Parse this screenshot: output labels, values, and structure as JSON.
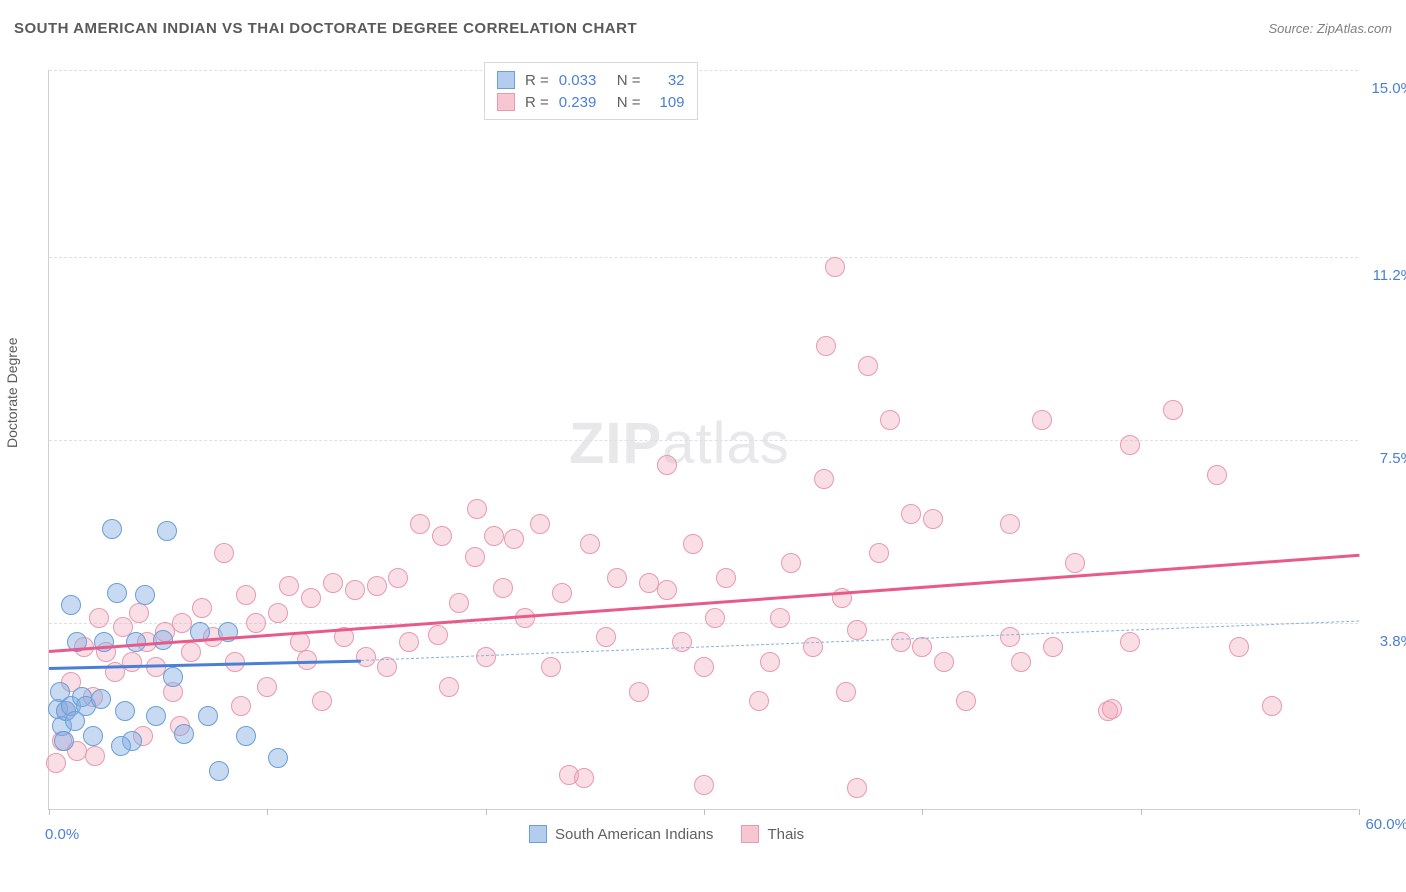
{
  "title": "SOUTH AMERICAN INDIAN VS THAI DOCTORATE DEGREE CORRELATION CHART",
  "source": "Source: ZipAtlas.com",
  "watermark_zip": "ZIP",
  "watermark_atlas": "atlas",
  "ylabel": "Doctorate Degree",
  "chart": {
    "type": "scatter",
    "xlim": [
      0,
      60
    ],
    "ylim": [
      0,
      15
    ],
    "x_min_label": "0.0%",
    "x_max_label": "60.0%",
    "y_ticks": [
      {
        "value": 3.8,
        "label": "3.8%"
      },
      {
        "value": 7.5,
        "label": "7.5%"
      },
      {
        "value": 11.2,
        "label": "11.2%"
      },
      {
        "value": 15.0,
        "label": "15.0%"
      }
    ],
    "x_tick_positions": [
      0,
      10,
      20,
      30,
      40,
      50,
      60
    ],
    "background_color": "#ffffff",
    "grid_color": "#e0e0e0",
    "axis_color": "#d0d0d0",
    "tick_label_color": "#4a7fd6",
    "marker_radius": 10,
    "series": {
      "blue": {
        "label": "South American Indians",
        "fill": "rgba(130,172,226,0.45)",
        "stroke": "#6a9fd8",
        "R": "0.033",
        "N": "32",
        "regression": {
          "x0": 0,
          "y0": 2.9,
          "x1": 14.3,
          "y1": 3.05,
          "solid_until_x": 14.3,
          "dash_to_x": 60,
          "dash_y1": 3.85,
          "line_color": "#4a7fd6",
          "line_width": 3,
          "dash_color": "#8ab0e0"
        },
        "points": [
          {
            "x": 0.4,
            "y": 2.05
          },
          {
            "x": 0.6,
            "y": 1.7
          },
          {
            "x": 0.8,
            "y": 2.0
          },
          {
            "x": 0.5,
            "y": 2.4
          },
          {
            "x": 0.7,
            "y": 1.4
          },
          {
            "x": 1.0,
            "y": 2.1
          },
          {
            "x": 1.2,
            "y": 1.8
          },
          {
            "x": 1.5,
            "y": 2.3
          },
          {
            "x": 1.0,
            "y": 4.15
          },
          {
            "x": 1.3,
            "y": 3.4
          },
          {
            "x": 1.7,
            "y": 2.1
          },
          {
            "x": 2.0,
            "y": 1.5
          },
          {
            "x": 2.4,
            "y": 2.25
          },
          {
            "x": 2.5,
            "y": 3.4
          },
          {
            "x": 2.9,
            "y": 5.7
          },
          {
            "x": 3.1,
            "y": 4.4
          },
          {
            "x": 3.5,
            "y": 2.0
          },
          {
            "x": 3.8,
            "y": 1.4
          },
          {
            "x": 4.0,
            "y": 3.4
          },
          {
            "x": 4.4,
            "y": 4.35
          },
          {
            "x": 4.9,
            "y": 1.9
          },
          {
            "x": 5.2,
            "y": 3.45
          },
          {
            "x": 5.4,
            "y": 5.65
          },
          {
            "x": 5.7,
            "y": 2.7
          },
          {
            "x": 6.2,
            "y": 1.55
          },
          {
            "x": 6.9,
            "y": 3.6
          },
          {
            "x": 7.3,
            "y": 1.9
          },
          {
            "x": 7.8,
            "y": 0.8
          },
          {
            "x": 8.2,
            "y": 3.6
          },
          {
            "x": 9.0,
            "y": 1.5
          },
          {
            "x": 10.5,
            "y": 1.05
          },
          {
            "x": 3.3,
            "y": 1.3
          }
        ]
      },
      "pink": {
        "label": "Thais",
        "fill": "rgba(240,160,180,0.35)",
        "stroke": "#e89ab0",
        "R": "0.239",
        "N": "109",
        "regression": {
          "x0": 0,
          "y0": 3.25,
          "x1": 60,
          "y1": 5.2,
          "line_color": "#e85a8a",
          "line_width": 3
        },
        "points": [
          {
            "x": 0.3,
            "y": 0.95
          },
          {
            "x": 0.6,
            "y": 1.4
          },
          {
            "x": 0.8,
            "y": 2.0
          },
          {
            "x": 1.0,
            "y": 2.6
          },
          {
            "x": 1.3,
            "y": 1.2
          },
          {
            "x": 1.6,
            "y": 3.3
          },
          {
            "x": 2.0,
            "y": 2.3
          },
          {
            "x": 2.3,
            "y": 3.9
          },
          {
            "x": 2.6,
            "y": 3.2
          },
          {
            "x": 3.0,
            "y": 2.8
          },
          {
            "x": 3.4,
            "y": 3.7
          },
          {
            "x": 3.8,
            "y": 3.0
          },
          {
            "x": 4.1,
            "y": 4.0
          },
          {
            "x": 4.5,
            "y": 3.4
          },
          {
            "x": 4.9,
            "y": 2.9
          },
          {
            "x": 5.3,
            "y": 3.6
          },
          {
            "x": 5.7,
            "y": 2.4
          },
          {
            "x": 6.1,
            "y": 3.8
          },
          {
            "x": 6.5,
            "y": 3.2
          },
          {
            "x": 7.0,
            "y": 4.1
          },
          {
            "x": 7.5,
            "y": 3.5
          },
          {
            "x": 8.0,
            "y": 5.2
          },
          {
            "x": 8.5,
            "y": 3.0
          },
          {
            "x": 9.0,
            "y": 4.35
          },
          {
            "x": 9.5,
            "y": 3.8
          },
          {
            "x": 10.0,
            "y": 2.5
          },
          {
            "x": 10.5,
            "y": 4.0
          },
          {
            "x": 11.0,
            "y": 4.55
          },
          {
            "x": 11.5,
            "y": 3.4
          },
          {
            "x": 12.0,
            "y": 4.3
          },
          {
            "x": 12.5,
            "y": 2.2
          },
          {
            "x": 13.0,
            "y": 4.6
          },
          {
            "x": 13.5,
            "y": 3.5
          },
          {
            "x": 14.0,
            "y": 4.45
          },
          {
            "x": 14.5,
            "y": 3.1
          },
          {
            "x": 15.0,
            "y": 4.55
          },
          {
            "x": 15.5,
            "y": 2.9
          },
          {
            "x": 16.0,
            "y": 4.7
          },
          {
            "x": 16.5,
            "y": 3.4
          },
          {
            "x": 17.0,
            "y": 5.8
          },
          {
            "x": 18.0,
            "y": 5.55
          },
          {
            "x": 18.3,
            "y": 2.5
          },
          {
            "x": 18.8,
            "y": 4.2
          },
          {
            "x": 19.5,
            "y": 5.12
          },
          {
            "x": 19.6,
            "y": 6.1
          },
          {
            "x": 20.0,
            "y": 3.1
          },
          {
            "x": 20.8,
            "y": 4.5
          },
          {
            "x": 21.3,
            "y": 5.5
          },
          {
            "x": 21.8,
            "y": 3.9
          },
          {
            "x": 22.5,
            "y": 5.8
          },
          {
            "x": 23.0,
            "y": 2.9
          },
          {
            "x": 23.5,
            "y": 4.4
          },
          {
            "x": 23.8,
            "y": 0.7
          },
          {
            "x": 24.5,
            "y": 0.65
          },
          {
            "x": 24.8,
            "y": 5.4
          },
          {
            "x": 25.5,
            "y": 3.5
          },
          {
            "x": 26.0,
            "y": 4.7
          },
          {
            "x": 27.0,
            "y": 2.4
          },
          {
            "x": 27.5,
            "y": 4.6
          },
          {
            "x": 28.3,
            "y": 7.0
          },
          {
            "x": 28.3,
            "y": 4.45
          },
          {
            "x": 29.0,
            "y": 3.4
          },
          {
            "x": 29.5,
            "y": 5.4
          },
          {
            "x": 30.0,
            "y": 0.5
          },
          {
            "x": 30.0,
            "y": 2.9
          },
          {
            "x": 30.5,
            "y": 3.9
          },
          {
            "x": 31.0,
            "y": 4.7
          },
          {
            "x": 32.5,
            "y": 2.2
          },
          {
            "x": 33.0,
            "y": 3.0
          },
          {
            "x": 33.5,
            "y": 3.9
          },
          {
            "x": 34.0,
            "y": 5.0
          },
          {
            "x": 35.0,
            "y": 3.3
          },
          {
            "x": 35.5,
            "y": 6.7
          },
          {
            "x": 35.6,
            "y": 9.4
          },
          {
            "x": 36.0,
            "y": 11.0
          },
          {
            "x": 36.3,
            "y": 4.3
          },
          {
            "x": 36.5,
            "y": 2.4
          },
          {
            "x": 37.0,
            "y": 3.65
          },
          {
            "x": 37.0,
            "y": 0.45
          },
          {
            "x": 37.5,
            "y": 9.0
          },
          {
            "x": 38.0,
            "y": 5.2
          },
          {
            "x": 38.5,
            "y": 7.9
          },
          {
            "x": 39.0,
            "y": 3.4
          },
          {
            "x": 39.5,
            "y": 6.0
          },
          {
            "x": 40.0,
            "y": 3.3
          },
          {
            "x": 40.5,
            "y": 5.9
          },
          {
            "x": 41.0,
            "y": 3.0
          },
          {
            "x": 42.0,
            "y": 2.2
          },
          {
            "x": 44.0,
            "y": 5.8
          },
          {
            "x": 44.0,
            "y": 3.5
          },
          {
            "x": 44.5,
            "y": 3.0
          },
          {
            "x": 45.5,
            "y": 7.9
          },
          {
            "x": 46.0,
            "y": 3.3
          },
          {
            "x": 47.0,
            "y": 5.0
          },
          {
            "x": 48.5,
            "y": 2.0
          },
          {
            "x": 48.7,
            "y": 2.05
          },
          {
            "x": 49.5,
            "y": 3.4
          },
          {
            "x": 49.5,
            "y": 7.4
          },
          {
            "x": 51.5,
            "y": 8.1
          },
          {
            "x": 53.5,
            "y": 6.8
          },
          {
            "x": 54.5,
            "y": 3.3
          },
          {
            "x": 56.0,
            "y": 2.1
          },
          {
            "x": 17.8,
            "y": 3.55
          },
          {
            "x": 6.0,
            "y": 1.7
          },
          {
            "x": 4.3,
            "y": 1.5
          },
          {
            "x": 2.1,
            "y": 1.1
          },
          {
            "x": 8.8,
            "y": 2.1
          },
          {
            "x": 11.8,
            "y": 3.05
          },
          {
            "x": 20.4,
            "y": 5.55
          }
        ]
      }
    }
  },
  "stat_legend": {
    "rows": [
      {
        "color": "blue",
        "r_label": "R =",
        "r_val": "0.033",
        "n_label": "N =",
        "n_val": "32"
      },
      {
        "color": "pink",
        "r_label": "R =",
        "r_val": "0.239",
        "n_label": "N =",
        "n_val": "109"
      }
    ]
  },
  "bottom_legend": {
    "items": [
      {
        "color": "blue",
        "label": "South American Indians"
      },
      {
        "color": "pink",
        "label": "Thais"
      }
    ]
  }
}
